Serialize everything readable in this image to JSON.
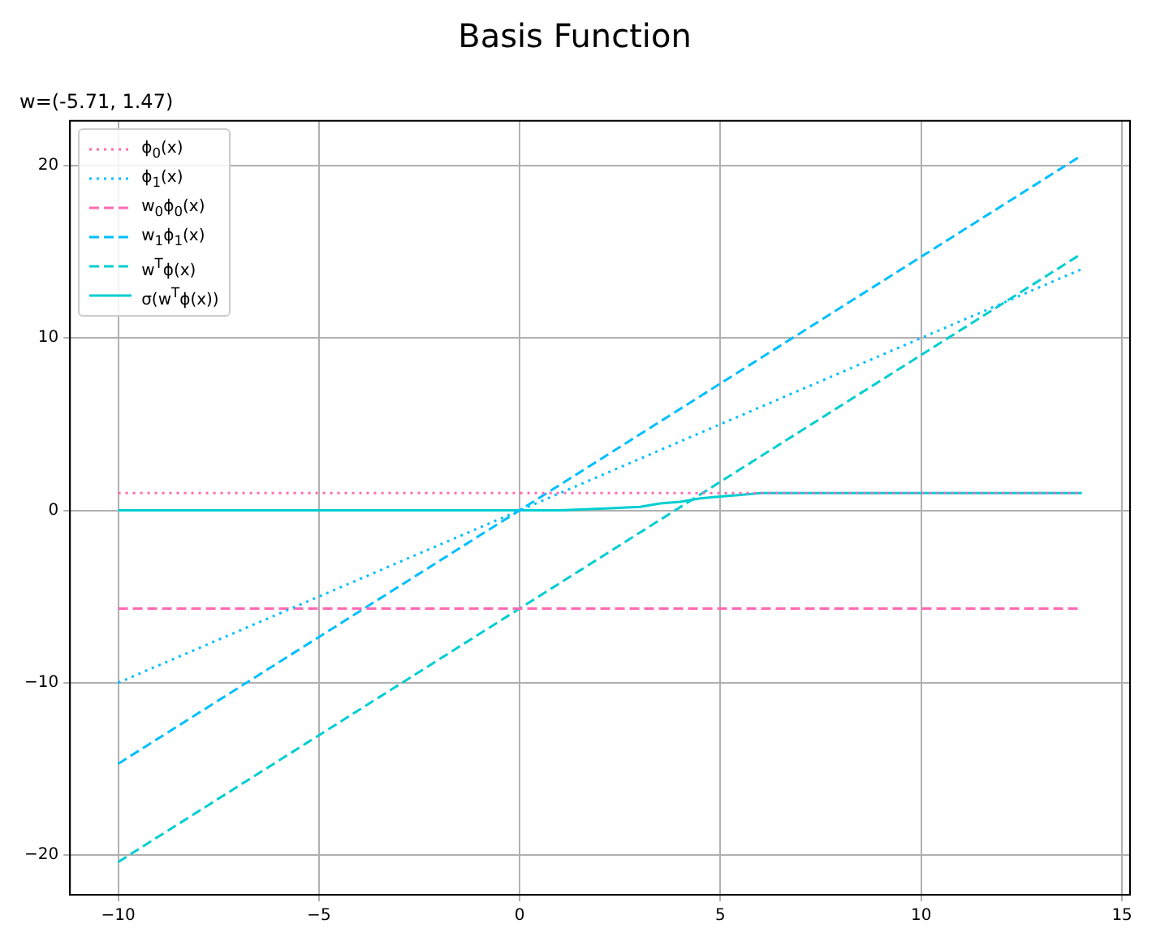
{
  "chart_data": {
    "type": "line",
    "title": "Basis Function",
    "subtitle": "w=(-5.71, 1.47)",
    "x": [
      -10,
      14
    ],
    "series": [
      {
        "name": "ϕ$_{0}$(x)",
        "color": "#ff69b4",
        "line_style": "dotted",
        "values": [
          1,
          1
        ]
      },
      {
        "name": "ϕ$_{1}$(x)",
        "color": "#00bfff",
        "line_style": "dotted",
        "values": [
          -10,
          14
        ]
      },
      {
        "name": "w$_{0}$ϕ$_{0}$(x)",
        "color": "#ff69b4",
        "line_style": "dashed",
        "values": [
          -5.7,
          -5.7
        ]
      },
      {
        "name": "w$_{1}$ϕ$_{1}$(x)",
        "color": "#00bfff",
        "line_style": "dashed",
        "values": [
          -14.7,
          20.6
        ]
      },
      {
        "name": "w$^{T}$ϕ(x)",
        "color": "#00ced1",
        "line_style": "dashed",
        "values": [
          -20.4,
          14.9
        ]
      },
      {
        "name": "σ(w$^{T}$ϕ(x))",
        "color": "#00ced1",
        "line_style": "solid",
        "x": [
          -10,
          -2,
          0,
          1,
          2,
          3,
          3.5,
          4,
          4.5,
          5,
          5.5,
          6,
          7,
          8,
          10,
          14
        ],
        "values": [
          0,
          0,
          0,
          0,
          0.1,
          0.2,
          0.4,
          0.5,
          0.7,
          0.8,
          0.9,
          1,
          1,
          1,
          1,
          1
        ]
      }
    ],
    "xlim": [
      -11.2,
      15.2
    ],
    "xticks": [
      -10,
      -5,
      0,
      5,
      10,
      15
    ],
    "ylim": [
      -22.3,
      22.6
    ],
    "yticks": [
      -20,
      -10,
      0,
      10,
      20
    ],
    "grid": true,
    "legend": "top left",
    "marker": "none"
  }
}
